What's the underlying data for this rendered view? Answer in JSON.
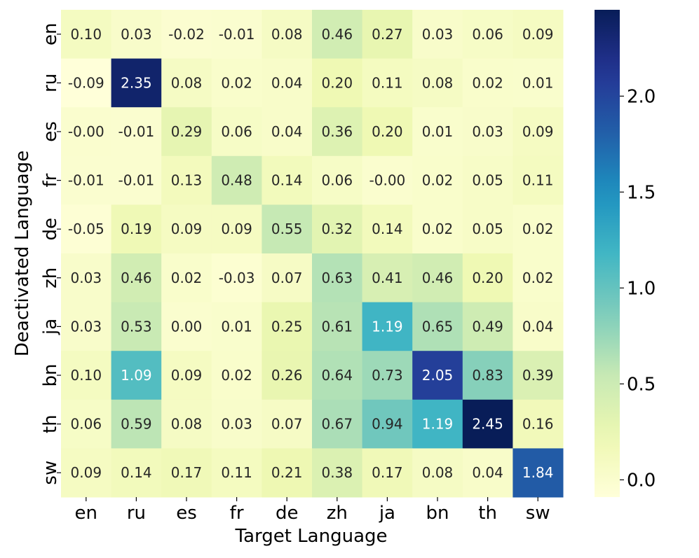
{
  "chart_data": {
    "type": "heatmap",
    "xlabel": "Target Language",
    "ylabel": "Deactivated Language",
    "x_categories": [
      "en",
      "ru",
      "es",
      "fr",
      "de",
      "zh",
      "ja",
      "bn",
      "th",
      "sw"
    ],
    "y_categories": [
      "en",
      "ru",
      "es",
      "fr",
      "de",
      "zh",
      "ja",
      "bn",
      "th",
      "sw"
    ],
    "values": [
      [
        0.1,
        0.03,
        -0.02,
        -0.01,
        0.08,
        0.46,
        0.27,
        0.03,
        0.06,
        0.09
      ],
      [
        -0.09,
        2.35,
        0.08,
        0.02,
        0.04,
        0.2,
        0.11,
        0.08,
        0.02,
        0.01
      ],
      [
        -0.0,
        -0.01,
        0.29,
        0.06,
        0.04,
        0.36,
        0.2,
        0.01,
        0.03,
        0.09
      ],
      [
        -0.01,
        -0.01,
        0.13,
        0.48,
        0.14,
        0.06,
        -0.0,
        0.02,
        0.05,
        0.11
      ],
      [
        -0.05,
        0.19,
        0.09,
        0.09,
        0.55,
        0.32,
        0.14,
        0.02,
        0.05,
        0.02
      ],
      [
        0.03,
        0.46,
        0.02,
        -0.03,
        0.07,
        0.63,
        0.41,
        0.46,
        0.2,
        0.02
      ],
      [
        0.03,
        0.53,
        0.0,
        0.01,
        0.25,
        0.61,
        1.19,
        0.65,
        0.49,
        0.04
      ],
      [
        0.1,
        1.09,
        0.09,
        0.02,
        0.26,
        0.64,
        0.73,
        2.05,
        0.83,
        0.39
      ],
      [
        0.06,
        0.59,
        0.08,
        0.03,
        0.07,
        0.67,
        0.94,
        1.19,
        2.45,
        0.16
      ],
      [
        0.09,
        0.14,
        0.17,
        0.11,
        0.21,
        0.38,
        0.17,
        0.08,
        0.04,
        1.84
      ]
    ],
    "value_labels": [
      [
        "0.10",
        "0.03",
        "-0.02",
        "-0.01",
        "0.08",
        "0.46",
        "0.27",
        "0.03",
        "0.06",
        "0.09"
      ],
      [
        "-0.09",
        "2.35",
        "0.08",
        "0.02",
        "0.04",
        "0.20",
        "0.11",
        "0.08",
        "0.02",
        "0.01"
      ],
      [
        "-0.00",
        "-0.01",
        "0.29",
        "0.06",
        "0.04",
        "0.36",
        "0.20",
        "0.01",
        "0.03",
        "0.09"
      ],
      [
        "-0.01",
        "-0.01",
        "0.13",
        "0.48",
        "0.14",
        "0.06",
        "-0.00",
        "0.02",
        "0.05",
        "0.11"
      ],
      [
        "-0.05",
        "0.19",
        "0.09",
        "0.09",
        "0.55",
        "0.32",
        "0.14",
        "0.02",
        "0.05",
        "0.02"
      ],
      [
        "0.03",
        "0.46",
        "0.02",
        "-0.03",
        "0.07",
        "0.63",
        "0.41",
        "0.46",
        "0.20",
        "0.02"
      ],
      [
        "0.03",
        "0.53",
        "0.00",
        "0.01",
        "0.25",
        "0.61",
        "1.19",
        "0.65",
        "0.49",
        "0.04"
      ],
      [
        "0.10",
        "1.09",
        "0.09",
        "0.02",
        "0.26",
        "0.64",
        "0.73",
        "2.05",
        "0.83",
        "0.39"
      ],
      [
        "0.06",
        "0.59",
        "0.08",
        "0.03",
        "0.07",
        "0.67",
        "0.94",
        "1.19",
        "2.45",
        "0.16"
      ],
      [
        "0.09",
        "0.14",
        "0.17",
        "0.11",
        "0.21",
        "0.38",
        "0.17",
        "0.08",
        "0.04",
        "1.84"
      ]
    ],
    "colormap": "YlGnBu",
    "colorbar": {
      "range": [
        -0.09,
        2.45
      ],
      "ticks": [
        0.0,
        0.5,
        1.0,
        1.5,
        2.0
      ],
      "tick_labels": [
        "0.0",
        "0.5",
        "1.0",
        "1.5",
        "2.0"
      ]
    },
    "colors": {
      "text_dark": "#262626",
      "text_light": "#ffffff"
    }
  }
}
